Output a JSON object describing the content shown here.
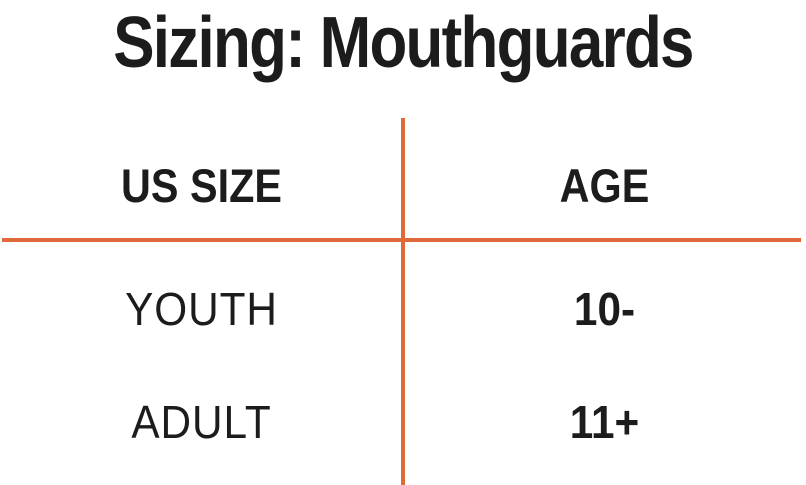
{
  "title": "Sizing: Mouthguards",
  "accent_color": "#E0693A",
  "text_color": "#1c1c1c",
  "table": {
    "columns": [
      "US SIZE",
      "AGE"
    ],
    "rows": [
      {
        "us_size": "YOUTH",
        "age": "10-"
      },
      {
        "us_size": "ADULT",
        "age": "11+"
      }
    ]
  }
}
